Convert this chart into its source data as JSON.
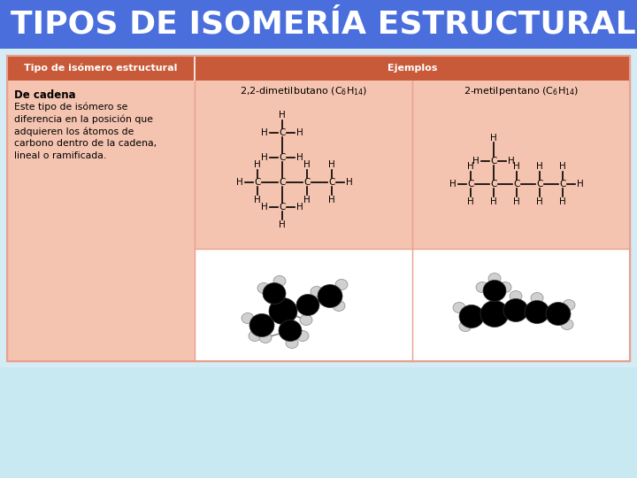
{
  "title": "TIPOS DE ISOMERÍA ESTRUCTURAL",
  "title_bg": "#4a6fdc",
  "title_color": "white",
  "title_fontsize": 26,
  "header_bg": "#c85a3a",
  "header_color": "white",
  "header_col1": "Tipo de isómero estructural",
  "header_col2": "Ejemplos",
  "cell_bg": "#f5c4b0",
  "cell_bg_white": "#ffffff",
  "description_title": "De cadena",
  "description_body": "Este tipo de isómero se\ndiferencia en la posición que\nadquieren los átomos de\ncarbono dentro de la cadena,\nlineal o ramificada.",
  "mol1_name": "2,2-dimetilbutano (C",
  "mol2_name": "2-metilpentano (C",
  "formula_sub1": "6",
  "formula_sub2": "H",
  "formula_sub3": "14",
  "formula_close": ")",
  "bg_bottom": "#c8e8f2",
  "overall_bg": "#d5ecf5",
  "table_border": "#e8a090",
  "divider_v": "#e8a090",
  "divider_h": "#e8a090"
}
